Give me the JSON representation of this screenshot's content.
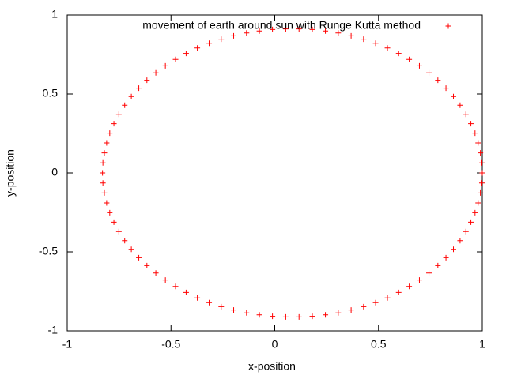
{
  "chart_data": {
    "type": "scatter",
    "xlabel": "x-position",
    "ylabel": "y-position",
    "xlim": [
      -1,
      1
    ],
    "ylim": [
      -1,
      1
    ],
    "xticks": [
      -1,
      -0.5,
      0,
      0.5,
      1
    ],
    "yticks": [
      -1,
      -0.5,
      0,
      0.5,
      1
    ],
    "grid": false,
    "legend": "top-right",
    "series": [
      {
        "name": "movement of earth around sun with Runge Kutta method",
        "color": "#ff0000",
        "x": [
          1.0,
          0.998,
          0.991,
          0.98,
          0.965,
          0.945,
          0.921,
          0.893,
          0.861,
          0.825,
          0.786,
          0.743,
          0.697,
          0.648,
          0.597,
          0.543,
          0.486,
          0.428,
          0.368,
          0.306,
          0.244,
          0.181,
          0.117,
          0.053,
          -0.011,
          -0.074,
          -0.136,
          -0.198,
          -0.258,
          -0.316,
          -0.373,
          -0.427,
          -0.478,
          -0.527,
          -0.573,
          -0.616,
          -0.655,
          -0.691,
          -0.723,
          -0.751,
          -0.775,
          -0.795,
          -0.81,
          -0.821,
          -0.828,
          -0.83,
          -0.828,
          -0.821,
          -0.81,
          -0.795,
          -0.775,
          -0.751,
          -0.723,
          -0.691,
          -0.655,
          -0.616,
          -0.573,
          -0.527,
          -0.478,
          -0.427,
          -0.373,
          -0.316,
          -0.258,
          -0.198,
          -0.136,
          -0.074,
          -0.011,
          0.053,
          0.117,
          0.181,
          0.244,
          0.306,
          0.368,
          0.428,
          0.486,
          0.543,
          0.597,
          0.648,
          0.697,
          0.743,
          0.786,
          0.825,
          0.861,
          0.893,
          0.921,
          0.945,
          0.965,
          0.98,
          0.991,
          0.998
        ],
        "y": [
          0,
          0.064,
          0.127,
          0.19,
          0.252,
          0.312,
          0.371,
          0.429,
          0.484,
          0.537,
          0.587,
          0.634,
          0.678,
          0.719,
          0.757,
          0.791,
          0.821,
          0.847,
          0.868,
          0.886,
          0.899,
          0.908,
          0.912,
          0.912,
          0.908,
          0.899,
          0.886,
          0.868,
          0.847,
          0.821,
          0.791,
          0.757,
          0.719,
          0.678,
          0.634,
          0.587,
          0.537,
          0.484,
          0.429,
          0.371,
          0.312,
          0.252,
          0.19,
          0.127,
          0.064,
          0,
          -0.064,
          -0.127,
          -0.19,
          -0.252,
          -0.312,
          -0.371,
          -0.429,
          -0.484,
          -0.537,
          -0.587,
          -0.634,
          -0.678,
          -0.719,
          -0.757,
          -0.791,
          -0.821,
          -0.847,
          -0.868,
          -0.886,
          -0.899,
          -0.908,
          -0.912,
          -0.912,
          -0.908,
          -0.899,
          -0.886,
          -0.868,
          -0.847,
          -0.821,
          -0.791,
          -0.757,
          -0.719,
          -0.678,
          -0.634,
          -0.587,
          -0.537,
          -0.484,
          -0.429,
          -0.371,
          -0.312,
          -0.252,
          -0.19,
          -0.127,
          -0.064
        ]
      }
    ]
  }
}
